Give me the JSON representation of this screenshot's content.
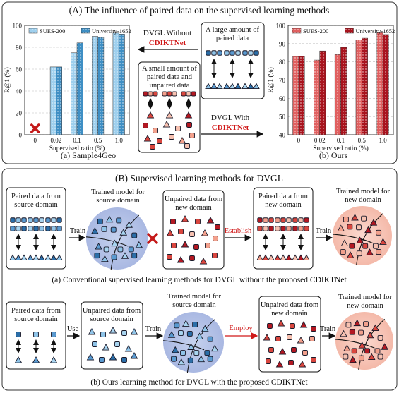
{
  "panel_a": {
    "title": "(A) The influence of paired  data on the supervised learning methods",
    "left_caption": "(a) Sample4Geo",
    "right_caption": "(b) Ours",
    "without_label": "DVGL Without",
    "with_label": "DVGL With",
    "method_name": "CDIKTNet",
    "large_box": [
      "A large amount of",
      "paired data"
    ],
    "small_box": [
      "A small amount of",
      "paired data and",
      "unpaired data"
    ]
  },
  "chart_data": [
    {
      "type": "bar",
      "categories": [
        "0",
        "0.02",
        "0.1",
        "0.5",
        "1.0"
      ],
      "xlabel": "Supervised ratio (%)",
      "ylabel": "R@1 (%)",
      "ylim": [
        0,
        100
      ],
      "yticks": [
        0,
        20,
        40,
        60,
        80,
        100
      ],
      "grid": true,
      "legend": "top",
      "zero_marker": "0",
      "series": [
        {
          "name": "SUES-200",
          "values": [
            0,
            62,
            75,
            90,
            93
          ],
          "color": "#9fd0ee"
        },
        {
          "name": "University-1652",
          "values": [
            0,
            62,
            84,
            89,
            92
          ],
          "color": "#3f8fc4"
        }
      ]
    },
    {
      "type": "bar",
      "categories": [
        "0",
        "0.02",
        "0.1",
        "0.5",
        "1.0"
      ],
      "xlabel": "Supervised ratio (%)",
      "ylabel": "R@1 (%)",
      "ylim": [
        40,
        100
      ],
      "yticks": [
        40,
        50,
        60,
        70,
        80,
        90,
        100
      ],
      "grid": true,
      "legend": "top",
      "series": [
        {
          "name": "SUES-200",
          "values": [
            83,
            81,
            84,
            92,
            96
          ],
          "color": "#e06060"
        },
        {
          "name": "University-1652",
          "values": [
            83,
            86,
            88,
            93,
            95
          ],
          "color": "#a8141e"
        }
      ]
    }
  ],
  "panel_b": {
    "title": "(B) Supervised learning methods for DVGL",
    "row1": {
      "src_paired": [
        "Paired data from",
        "source domain"
      ],
      "train": "Train",
      "trained_src": [
        "Trained model for",
        "source domain"
      ],
      "unpaired_new": [
        "Unpaired data from",
        "new domain"
      ],
      "establish": "Establish",
      "paired_new": [
        "Paired data from",
        "new domain"
      ],
      "train2": "Train",
      "trained_new": [
        "Trained model for",
        "new domain"
      ],
      "caption": "(a) Conventional supervised learning methods for DVGL without the proposed CDIKTNet"
    },
    "row2": {
      "src_paired": [
        "Paired data from",
        "source domain"
      ],
      "use": "Use",
      "unpaired_src": [
        "Unpaired data from",
        "source domain"
      ],
      "train": "Train",
      "trained_src": [
        "Trained model for",
        "source domain"
      ],
      "employ": "Employ",
      "unpaired_new": [
        "Unpaired data from",
        "new domain"
      ],
      "train2": "Train",
      "trained_new": [
        "Trained model for",
        "new domain"
      ],
      "caption": "(b) Ours learning method for DVGL with the proposed CDIKTNet"
    }
  },
  "colors": {
    "blue_dark": "#2b6ea8",
    "blue_light": "#8fc4e8",
    "red_dark": "#b31822",
    "red_light": "#f2a08c",
    "accent_red": "#d01818"
  }
}
